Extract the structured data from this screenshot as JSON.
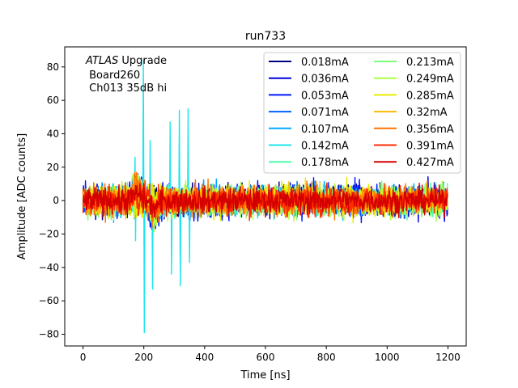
{
  "chart_data": {
    "type": "line",
    "title": "run733",
    "xlabel": "Time [ns]",
    "ylabel": "Amplitude [ADC counts]",
    "xlim": [
      -60,
      1260
    ],
    "ylim": [
      -87,
      92
    ],
    "xticks": [
      0,
      200,
      400,
      600,
      800,
      1000,
      1200
    ],
    "yticks": [
      -80,
      -60,
      -40,
      -20,
      0,
      20,
      40,
      60,
      80
    ],
    "grid": false,
    "legend_placement": "top-right",
    "legend_columns": 2,
    "annotation": {
      "italic": "ATLAS",
      "line1_rest": " Upgrade",
      "line2": " Board260",
      "line3": " Ch013 35dB hi"
    },
    "series": [
      {
        "name": "0.018mA",
        "color": "#00007f",
        "noise_amplitude": 8
      },
      {
        "name": "0.036mA",
        "color": "#0000d9",
        "noise_amplitude": 9
      },
      {
        "name": "0.053mA",
        "color": "#0019ff",
        "noise_amplitude": 9
      },
      {
        "name": "0.071mA",
        "color": "#0060ff",
        "noise_amplitude": 8
      },
      {
        "name": "0.107mA",
        "color": "#00a8ff",
        "noise_amplitude": 8
      },
      {
        "name": "0.142mA",
        "color": "#1ce5f0",
        "noise_amplitude": 7,
        "spikes": [
          {
            "x": 170,
            "y": 26
          },
          {
            "x": 172,
            "y": -24
          },
          {
            "x": 198,
            "y": 84
          },
          {
            "x": 200,
            "y": -79
          },
          {
            "x": 220,
            "y": 36
          },
          {
            "x": 228,
            "y": -53
          },
          {
            "x": 286,
            "y": 47
          },
          {
            "x": 290,
            "y": -44
          },
          {
            "x": 316,
            "y": 54
          },
          {
            "x": 320,
            "y": -51
          },
          {
            "x": 345,
            "y": 55
          },
          {
            "x": 350,
            "y": -37
          }
        ]
      },
      {
        "name": "0.178mA",
        "color": "#4cffaa",
        "noise_amplitude": 8
      },
      {
        "name": "0.213mA",
        "color": "#7cff79",
        "noise_amplitude": 8
      },
      {
        "name": "0.249mA",
        "color": "#b0ff46",
        "noise_amplitude": 9
      },
      {
        "name": "0.285mA",
        "color": "#e8ee00",
        "noise_amplitude": 9
      },
      {
        "name": "0.32mA",
        "color": "#ffb900",
        "noise_amplitude": 8
      },
      {
        "name": "0.356mA",
        "color": "#ff7400",
        "noise_amplitude": 8
      },
      {
        "name": "0.391mA",
        "color": "#ff2c00",
        "noise_amplitude": 8
      },
      {
        "name": "0.427mA",
        "color": "#d40000",
        "noise_amplitude": 7
      }
    ]
  }
}
